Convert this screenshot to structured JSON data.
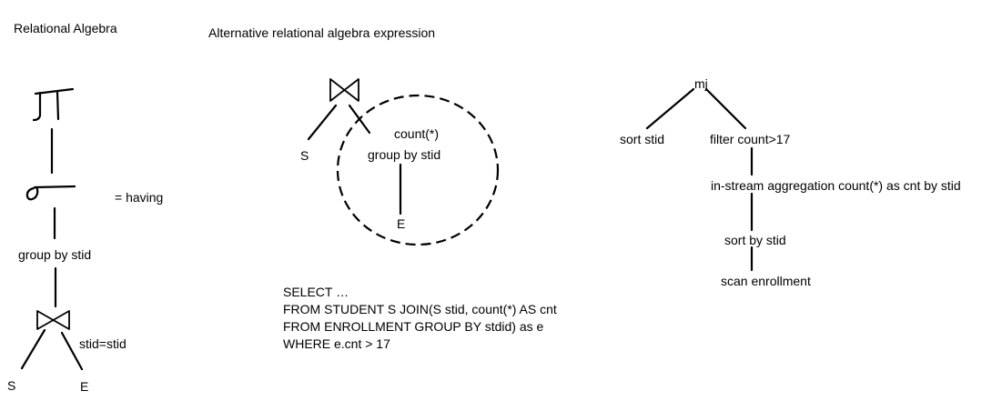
{
  "left": {
    "title": "Relational Algebra",
    "having_label": "= having",
    "group_by": "group by stid",
    "join_cond": "stid=stid",
    "leaf_s": "S",
    "leaf_e": "E"
  },
  "middle": {
    "title": "Alternative relational algebra expression",
    "leaf_s": "S",
    "count": "count(*)",
    "group_by": "group by stid",
    "leaf_e": "E",
    "sql": [
      "SELECT …",
      "FROM STUDENT S JOIN(S stid, count(*) AS cnt",
      "FROM ENROLLMENT GROUP BY stdid) as e",
      "WHERE e.cnt > 17"
    ]
  },
  "right": {
    "root": "mj",
    "sort_stid": "sort stid",
    "filter": "filter count>17",
    "aggregation": "in-stream aggregation count(*) as cnt by stid",
    "sort_by": "sort by stid",
    "scan": "scan enrollment"
  }
}
